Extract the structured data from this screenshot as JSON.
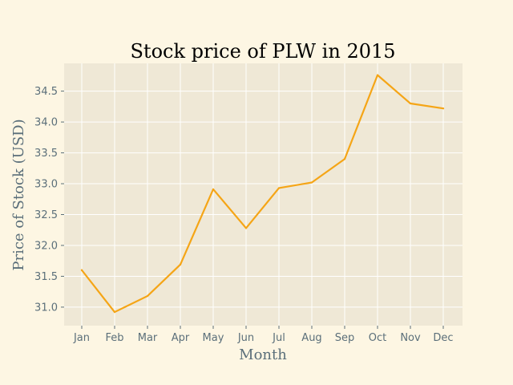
{
  "chart_data": {
    "type": "line",
    "title": "Stock price of PLW in 2015",
    "xlabel": "Month",
    "ylabel": "Price of Stock (USD)",
    "categories": [
      "Jan",
      "Feb",
      "Mar",
      "Apr",
      "May",
      "Jun",
      "Jul",
      "Aug",
      "Sep",
      "Oct",
      "Nov",
      "Dec"
    ],
    "series": [
      {
        "values": [
          31.6,
          30.92,
          31.18,
          31.69,
          32.91,
          32.28,
          32.93,
          33.02,
          33.4,
          34.76,
          34.3,
          34.22
        ]
      }
    ],
    "ylim": [
      30.7,
      34.95
    ],
    "yticks": [
      "31.0",
      "31.5",
      "32.0",
      "32.5",
      "33.0",
      "33.5",
      "34.0",
      "34.5"
    ],
    "grid": true,
    "colors": {
      "figure_background": "#fdf6e3",
      "plot_background": "#efe8d6",
      "grid": "#ffffff",
      "line": "#f5a516",
      "tick": "#5b6f7a"
    }
  }
}
